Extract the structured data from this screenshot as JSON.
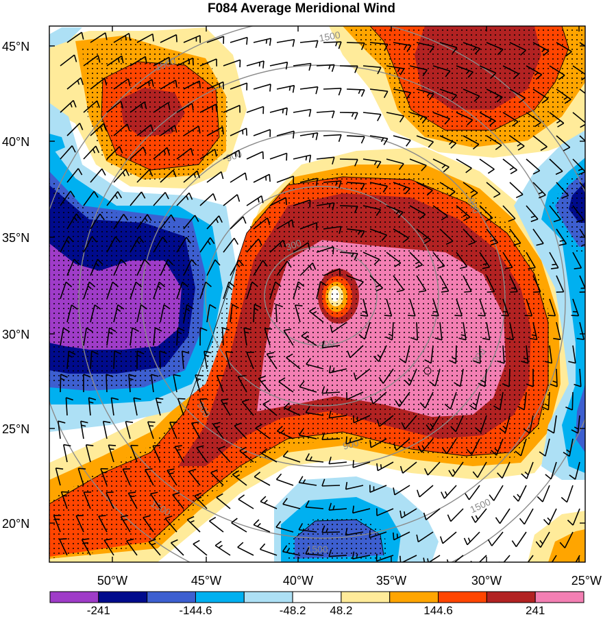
{
  "title": "F084 Average Meridional Wind",
  "latitude_labels": [
    "45°N",
    "40°N",
    "35°N",
    "30°N",
    "25°N",
    "20°N"
  ],
  "longitude_labels": [
    "50°W",
    "45°W",
    "40°W",
    "35°W",
    "30°W",
    "25°W"
  ],
  "colorbar": {
    "colors": [
      "#9f3cc8",
      "#000b8c",
      "#3d5fd0",
      "#00b0f0",
      "#ade0f5",
      "#ffffff",
      "#ffeb9a",
      "#ffa500",
      "#ff4500",
      "#b22222",
      "#f37fb3"
    ],
    "tick_labels": [
      "-241",
      "-144.6",
      "-48.2",
      "48.2",
      "144.6",
      "241"
    ]
  },
  "contour_labels": [
    "1500",
    "1500",
    "900",
    "900",
    "300",
    "300",
    "900",
    "900",
    "900",
    "1500",
    "1500",
    "1500"
  ],
  "colors": {
    "contour_line": "#8a8a8a",
    "barb": "#000000",
    "frame": "#000000"
  }
}
